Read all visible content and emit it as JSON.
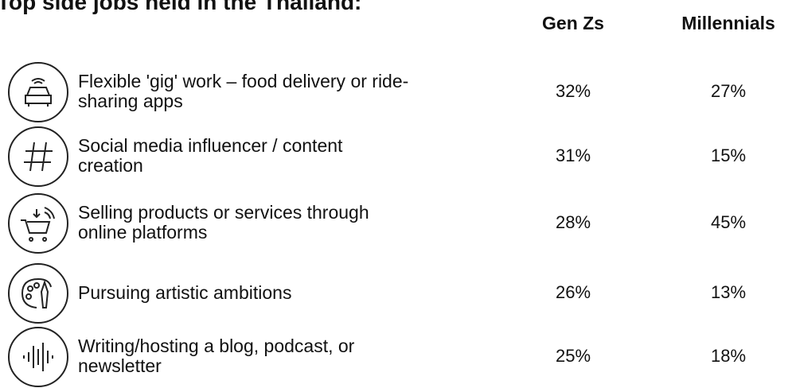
{
  "title": "Top side jobs held in the Thailand:",
  "table": {
    "columns": [
      "Gen Zs",
      "Millennials"
    ],
    "rows": [
      {
        "label": [
          "Flexible 'gig' work – food delivery or ride-",
          "sharing apps"
        ],
        "values": [
          "32%",
          "27%"
        ]
      },
      {
        "label": [
          "Social media influencer / content",
          "creation"
        ],
        "values": [
          "31%",
          "15%"
        ]
      },
      {
        "label": [
          "Selling products or services through",
          "online platforms"
        ],
        "values": [
          "28%",
          "45%"
        ]
      },
      {
        "label": [
          "Pursuing artistic ambitions"
        ],
        "values": [
          "26%",
          "13%"
        ]
      },
      {
        "label": [
          "Writing/hosting a blog, podcast, or",
          "newsletter"
        ],
        "values": [
          "25%",
          "18%"
        ]
      }
    ]
  }
}
